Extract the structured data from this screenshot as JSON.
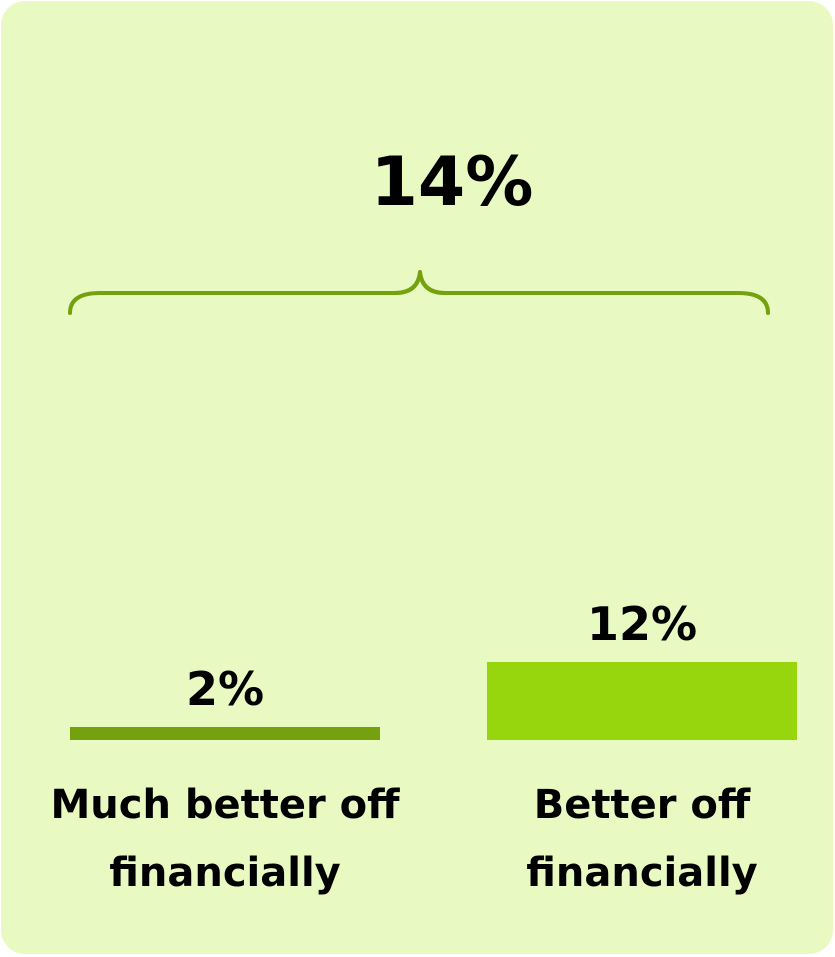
{
  "chart_data": {
    "type": "bar",
    "categories": [
      [
        "Much better off",
        "financially"
      ],
      [
        "Better off",
        "financially"
      ]
    ],
    "values": [
      2,
      12
    ],
    "value_labels": [
      "2%",
      "12%"
    ],
    "total": 14,
    "total_label": "14%",
    "colors": {
      "background": "#e8f9c2",
      "bar_much_better": "#74a10d",
      "bar_better": "#97d60c",
      "brace": "#74a10d"
    }
  }
}
